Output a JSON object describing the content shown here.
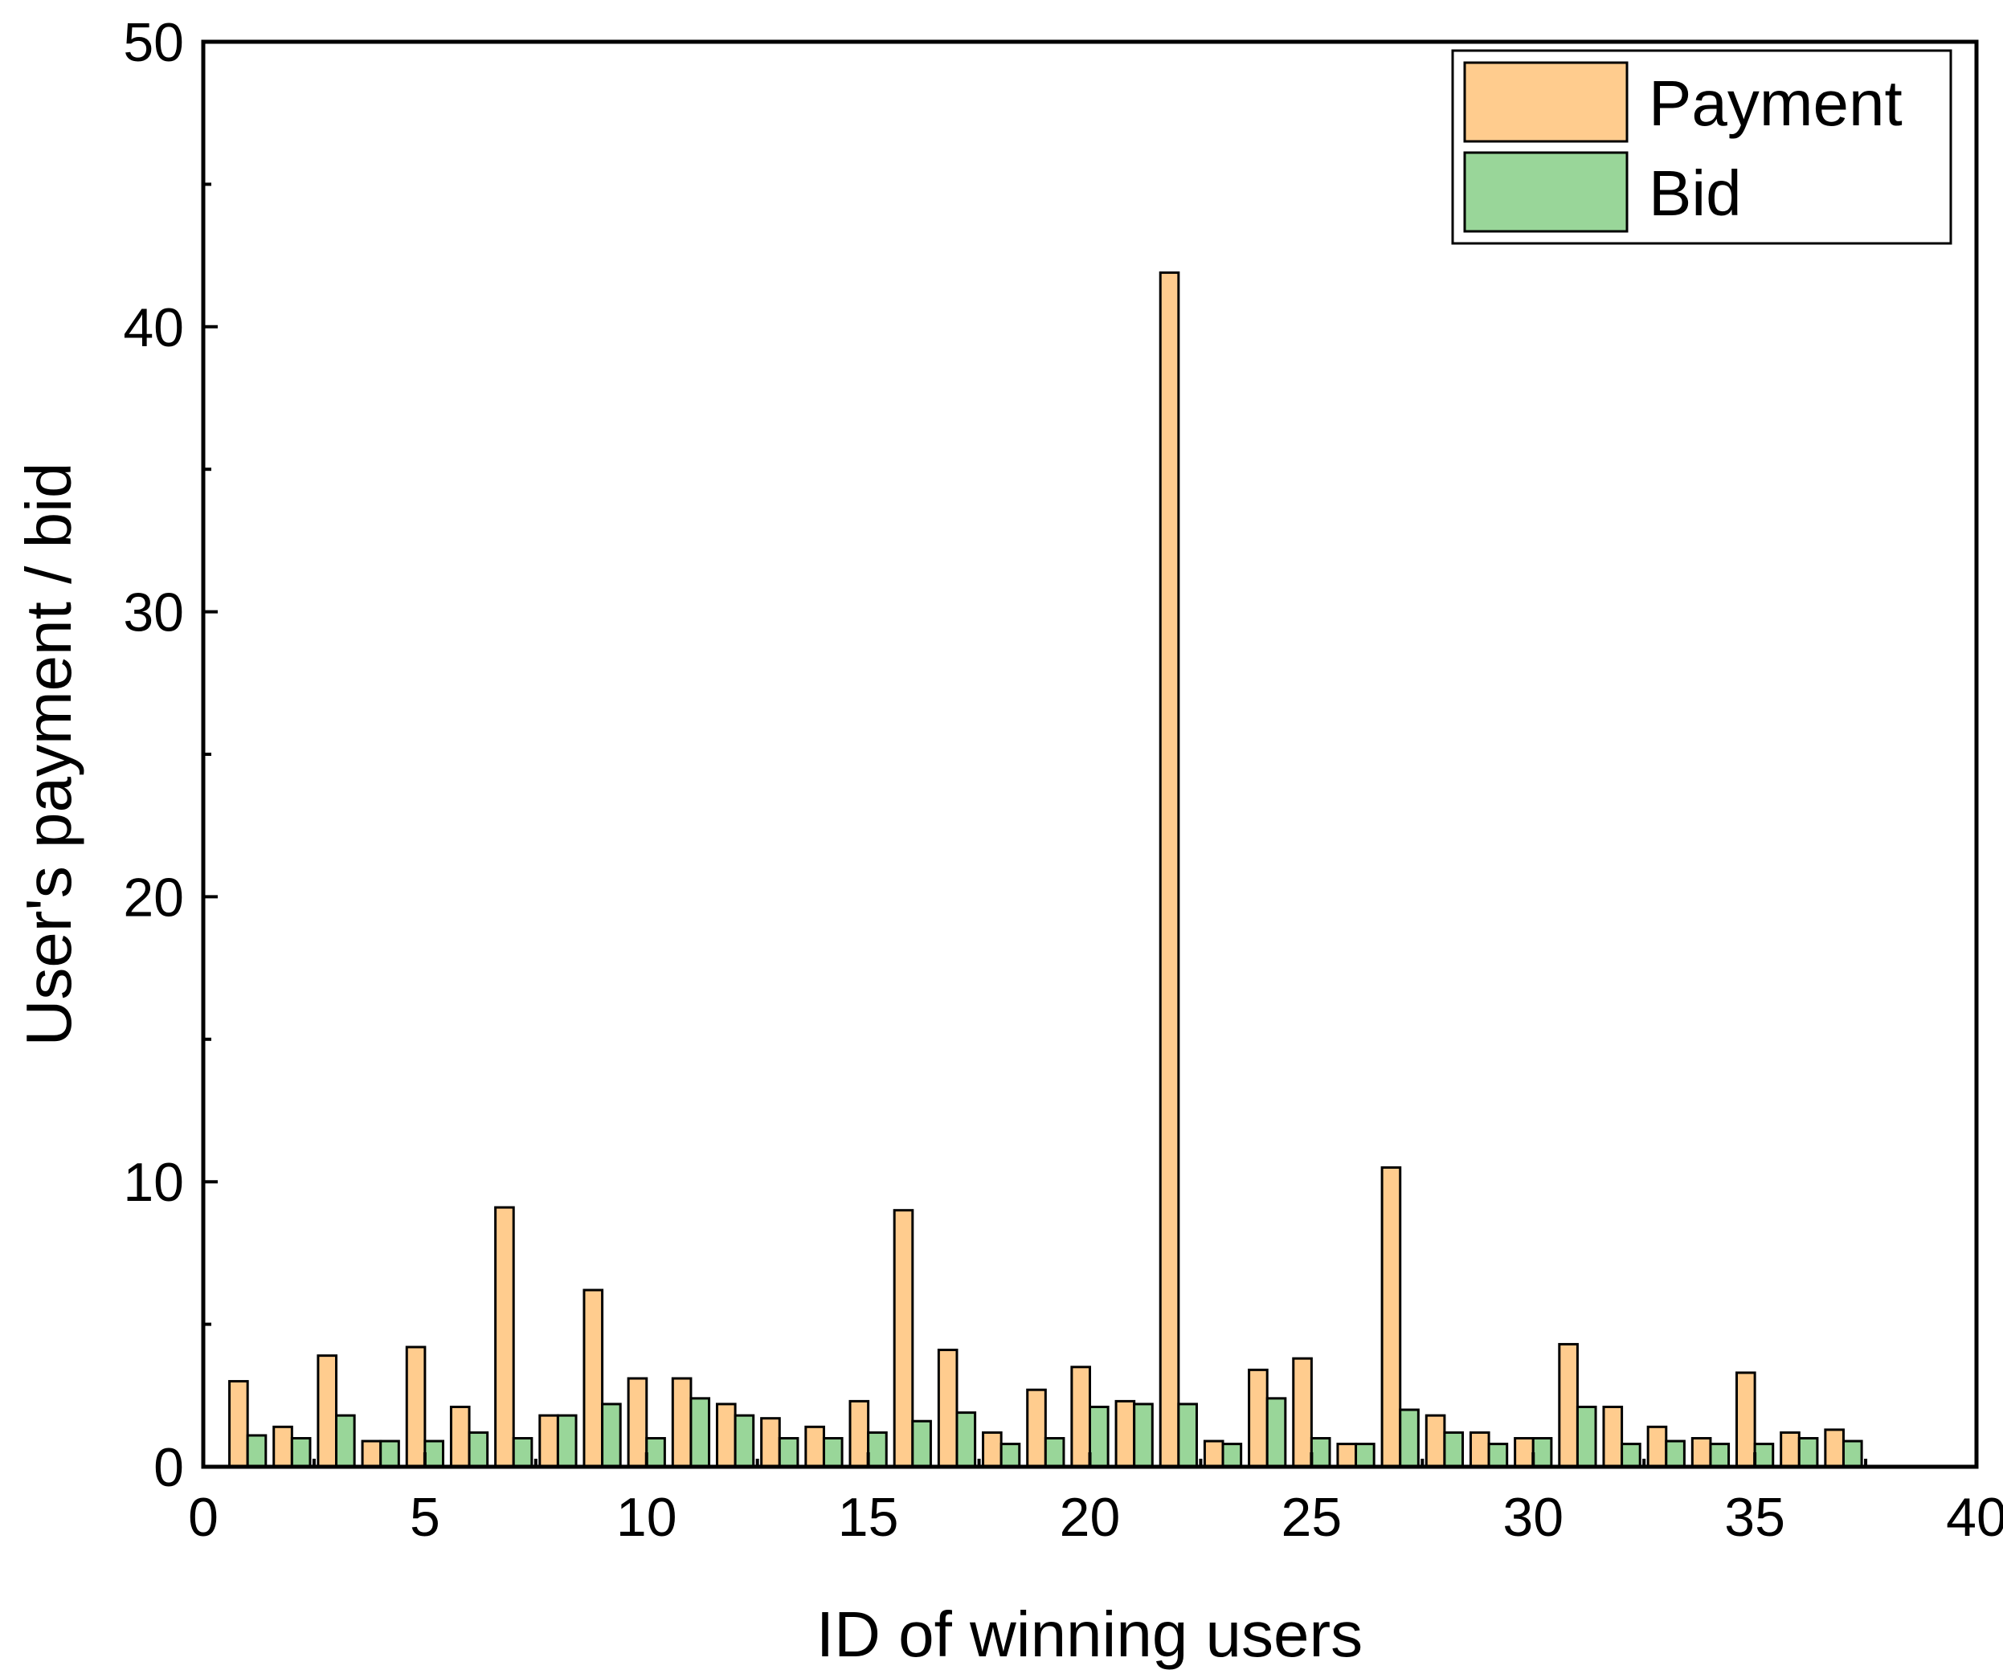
{
  "chart_data": {
    "type": "bar",
    "title": "",
    "xlabel": "ID of winning users",
    "ylabel": "User's payment / bid",
    "xlim": [
      0,
      40
    ],
    "ylim": [
      0,
      50
    ],
    "xticks": [
      0,
      5,
      10,
      15,
      20,
      25,
      30,
      35,
      40
    ],
    "yticks": [
      0,
      10,
      20,
      30,
      40,
      50
    ],
    "grid": false,
    "legend_position": "top-right",
    "x": [
      1,
      2,
      3,
      4,
      5,
      6,
      7,
      8,
      9,
      10,
      11,
      12,
      13,
      14,
      15,
      16,
      17,
      18,
      19,
      20,
      21,
      22,
      23,
      24,
      25,
      26,
      27,
      28,
      29,
      30,
      31,
      32,
      33,
      34,
      35,
      36,
      37
    ],
    "series": [
      {
        "name": "Payment",
        "color": "#FFCC8E",
        "values": [
          3.0,
          1.4,
          3.9,
          0.9,
          4.2,
          2.1,
          9.1,
          1.8,
          6.2,
          3.1,
          3.1,
          2.2,
          1.7,
          1.4,
          2.3,
          9.0,
          4.1,
          1.2,
          2.7,
          3.5,
          2.3,
          41.9,
          0.9,
          3.4,
          3.8,
          0.8,
          10.5,
          1.8,
          1.2,
          1.0,
          4.3,
          2.1,
          1.4,
          1.0,
          3.3,
          1.2,
          1.3
        ]
      },
      {
        "name": "Bid",
        "color": "#99D699",
        "values": [
          1.1,
          1.0,
          1.8,
          0.9,
          0.9,
          1.2,
          1.0,
          1.8,
          2.2,
          1.0,
          2.4,
          1.8,
          1.0,
          1.0,
          1.2,
          1.6,
          1.9,
          0.8,
          1.0,
          2.1,
          2.2,
          2.2,
          0.8,
          2.4,
          1.0,
          0.8,
          2.0,
          1.2,
          0.8,
          1.0,
          2.1,
          0.8,
          0.9,
          0.8,
          0.8,
          1.0,
          0.9
        ]
      }
    ]
  }
}
